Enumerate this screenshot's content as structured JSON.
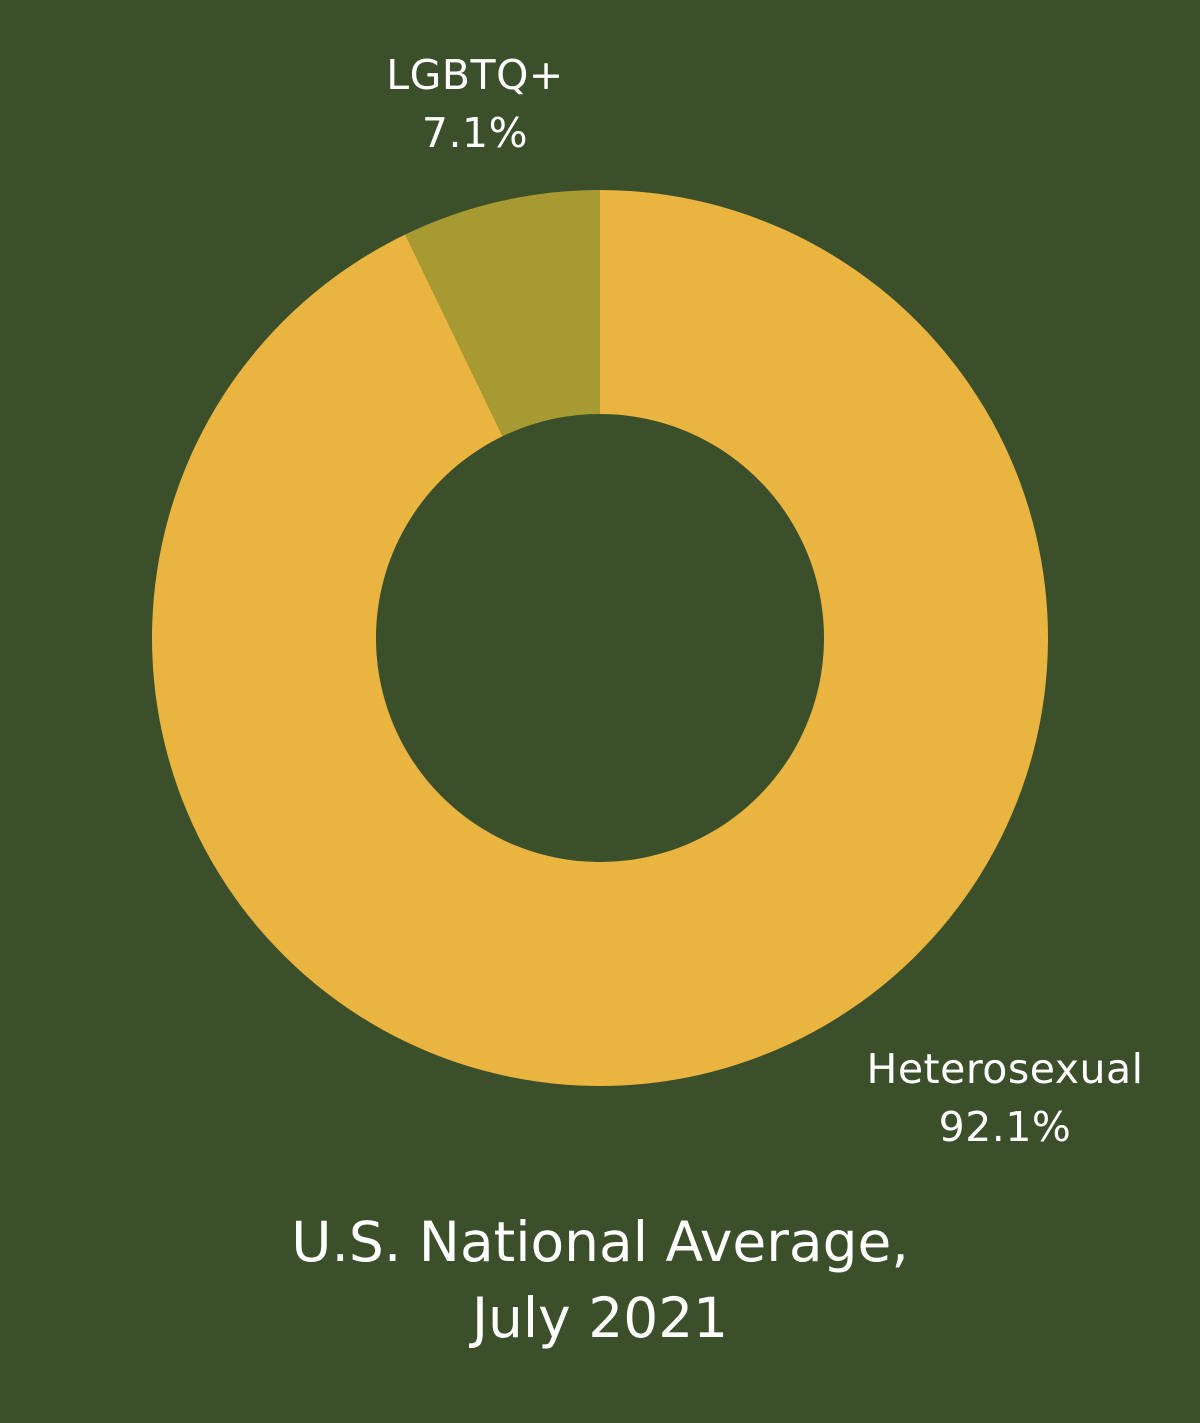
{
  "chart_data": {
    "type": "pie",
    "donut": true,
    "title_line1": "U.S. National Average,",
    "title_line2": "July 2021",
    "background": "#3b4f2a",
    "slices": [
      {
        "label": "Heterosexual",
        "value": 92.1,
        "display": "92.1%",
        "color": "#eab440"
      },
      {
        "label": "LGBTQ+",
        "value": 7.1,
        "display": "7.1%",
        "color": "#a89a32"
      }
    ],
    "legend": "none"
  }
}
